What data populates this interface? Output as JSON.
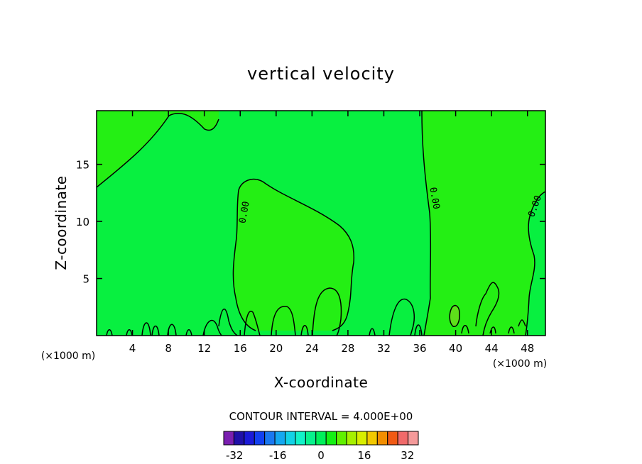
{
  "chart_data": {
    "type": "contour",
    "title": "vertical velocity",
    "xlabel": "X-coordinate",
    "ylabel": "Z-coordinate",
    "x_unit_label": "(×1000 m)",
    "xlim": [
      0,
      50
    ],
    "ylim": [
      0,
      19.7
    ],
    "x_ticks": [
      4,
      8,
      12,
      16,
      20,
      24,
      28,
      32,
      36,
      40,
      44,
      48
    ],
    "y_ticks": [
      5,
      10,
      15
    ],
    "contour_interval_text": "CONTOUR INTERVAL = 4.000E+00",
    "contour_interval": 4,
    "contour_labels": [
      "0.00",
      "0.00",
      "0.00"
    ],
    "colorbar": {
      "levels": [
        -36,
        -32,
        -28,
        -24,
        -20,
        -16,
        -12,
        -8,
        -4,
        0,
        4,
        8,
        12,
        16,
        20,
        24,
        28,
        32,
        36
      ],
      "tick_values": [
        -32,
        -16,
        0,
        16,
        32
      ],
      "tick_labels": [
        "-32",
        "-16",
        "0",
        "16",
        "32"
      ],
      "colors": [
        "#7a1fb0",
        "#1f10a8",
        "#1a1ad8",
        "#1240f0",
        "#1a78f0",
        "#14a8f0",
        "#12d2e6",
        "#12f2c8",
        "#08f28c",
        "#00f05a",
        "#14f014",
        "#60f000",
        "#a6f000",
        "#d8ee00",
        "#f2c800",
        "#f28e00",
        "#f05a14",
        "#f06a6a",
        "#f49a9a"
      ]
    },
    "regions": [
      {
        "sign": "weak positive",
        "color": "#24ef14"
      },
      {
        "sign": "weak negative",
        "color": "#08f040"
      },
      {
        "sign": "positive cell",
        "color": "#5ee01a"
      }
    ]
  }
}
